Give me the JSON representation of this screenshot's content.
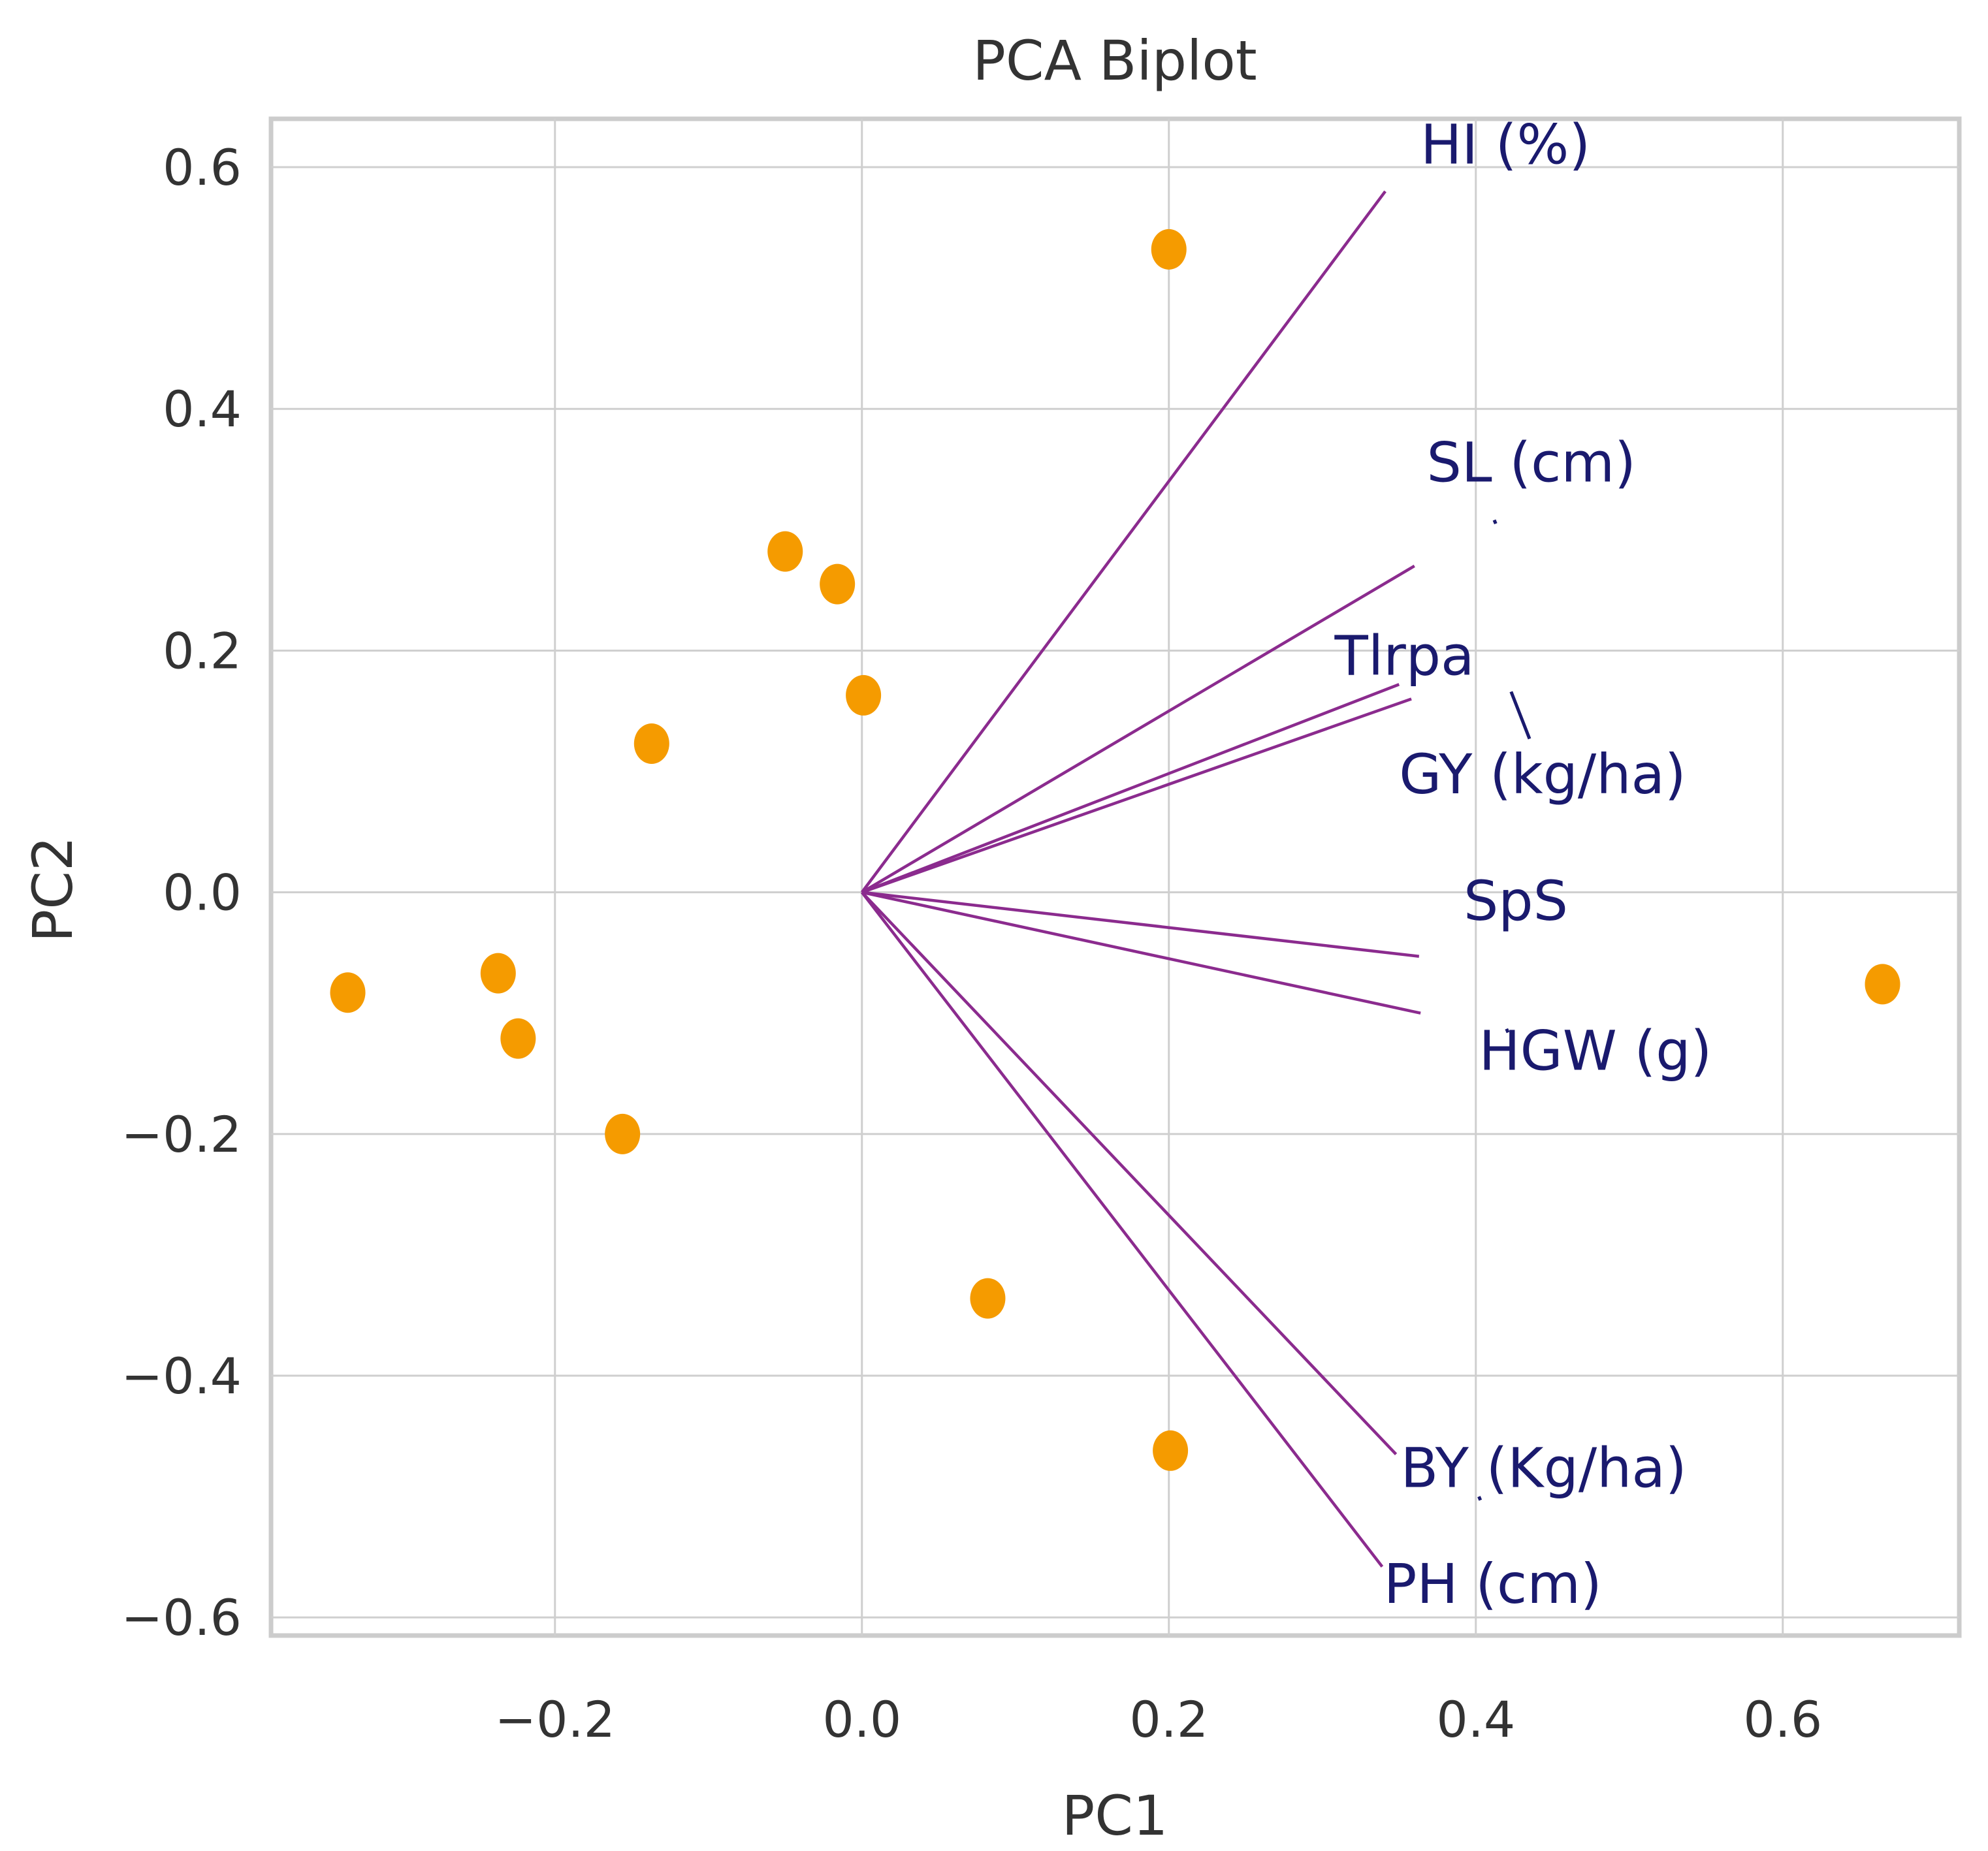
{
  "chart_data": {
    "type": "scatter",
    "subtype": "pca-biplot",
    "title": "PCA Biplot",
    "xlabel": "PC1",
    "ylabel": "PC2",
    "xlim": [
      -0.385,
      0.715
    ],
    "ylim": [
      -0.615,
      0.64
    ],
    "grid": true,
    "xticks": [
      -0.2,
      0.0,
      0.2,
      0.4,
      0.6
    ],
    "xtick_labels": [
      "−0.2",
      "0.0",
      "0.2",
      "0.4",
      "0.6"
    ],
    "yticks": [
      0.6,
      0.4,
      0.2,
      0.0,
      -0.2,
      -0.4,
      -0.6
    ],
    "ytick_labels": [
      "0.6",
      "0.4",
      "0.2",
      "0.0",
      "−0.2",
      "−0.4",
      "−0.6"
    ],
    "point_color": "#f59b00",
    "loading_color": "#8b2b8e",
    "label_color": "#1a1a6e",
    "scores": [
      {
        "x": -0.335,
        "y": -0.083
      },
      {
        "x": -0.237,
        "y": -0.067
      },
      {
        "x": -0.224,
        "y": -0.121
      },
      {
        "x": -0.156,
        "y": -0.2
      },
      {
        "x": -0.137,
        "y": 0.123
      },
      {
        "x": -0.05,
        "y": 0.282
      },
      {
        "x": -0.016,
        "y": 0.255
      },
      {
        "x": 0.001,
        "y": 0.163
      },
      {
        "x": 0.082,
        "y": -0.336
      },
      {
        "x": 0.2,
        "y": 0.532
      },
      {
        "x": 0.201,
        "y": -0.462
      },
      {
        "x": 0.665,
        "y": -0.076
      }
    ],
    "loadings": [
      {
        "name": "HI (%)",
        "x": 0.341,
        "y": 0.58,
        "label_x": 0.364,
        "label_y": 0.603
      },
      {
        "name": "SL (cm)",
        "x": 0.36,
        "y": 0.27,
        "label_x": 0.368,
        "label_y": 0.34
      },
      {
        "name": "Tlrpa",
        "x": 0.35,
        "y": 0.172,
        "label_x": 0.308,
        "label_y": 0.18
      },
      {
        "name": "GY (kg/ha)",
        "x": 0.358,
        "y": 0.16,
        "label_x": 0.35,
        "label_y": 0.082
      },
      {
        "name": "SpS",
        "x": 0.363,
        "y": -0.053,
        "label_x": 0.392,
        "label_y": -0.023
      },
      {
        "name": "HGW (g)",
        "x": 0.364,
        "y": -0.1,
        "label_x": 0.402,
        "label_y": -0.147
      },
      {
        "name": "BY (Kg/ha)",
        "x": 0.348,
        "y": -0.465,
        "label_x": 0.351,
        "label_y": -0.492
      },
      {
        "name": "PH (cm)",
        "x": 0.339,
        "y": -0.558,
        "label_x": 0.34,
        "label_y": -0.588
      }
    ]
  }
}
